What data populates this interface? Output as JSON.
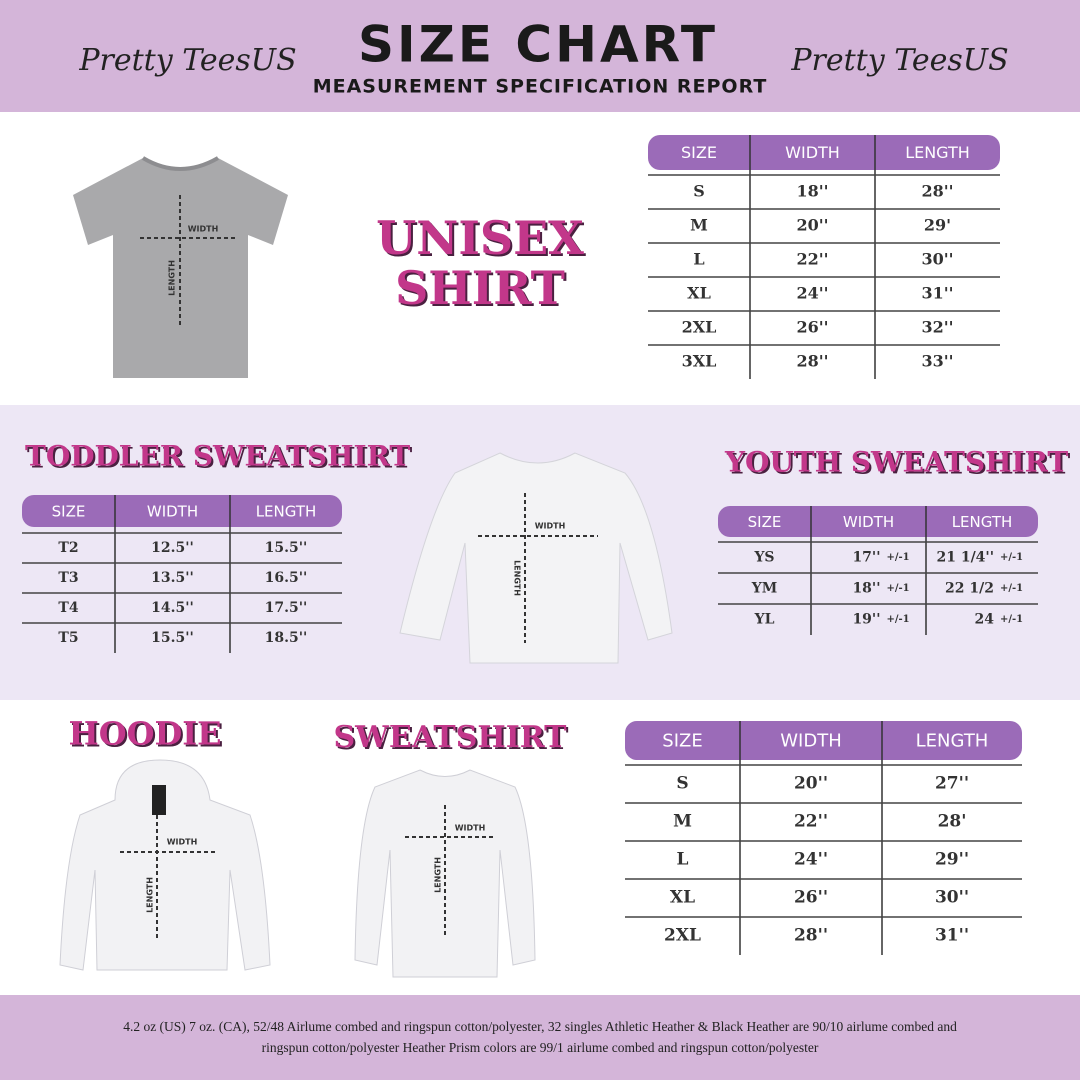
{
  "header": {
    "brand_left": "Pretty TeesUS",
    "brand_right": "Pretty TeesUS",
    "title": "SIZE CHART",
    "subtitle": "MEASUREMENT SPECIFICATION REPORT"
  },
  "garment_labels": {
    "width": "WIDTH",
    "length": "LENGTH"
  },
  "unisex": {
    "title_lines": [
      "UNISEX",
      "SHIRT"
    ],
    "table": {
      "columns": [
        "SIZE",
        "WIDTH",
        "LENGTH"
      ],
      "rows": [
        [
          "S",
          "18''",
          "28''"
        ],
        [
          "M",
          "20''",
          "29'"
        ],
        [
          "L",
          "22''",
          "30''"
        ],
        [
          "XL",
          "24''",
          "31''"
        ],
        [
          "2XL",
          "26''",
          "32''"
        ],
        [
          "3XL",
          "28''",
          "33''"
        ]
      ]
    }
  },
  "toddler": {
    "title": "TODDLER SWEATSHIRT",
    "table": {
      "columns": [
        "SIZE",
        "WIDTH",
        "LENGTH"
      ],
      "rows": [
        [
          "T2",
          "12.5''",
          "15.5''"
        ],
        [
          "T3",
          "13.5''",
          "16.5''"
        ],
        [
          "T4",
          "14.5''",
          "17.5''"
        ],
        [
          "T5",
          "15.5''",
          "18.5''"
        ]
      ]
    }
  },
  "youth": {
    "title": "YOUTH SWEATSHIRT",
    "table": {
      "columns": [
        "SIZE",
        "WIDTH",
        "LENGTH"
      ],
      "rows": [
        [
          "YS",
          "17''",
          "+/-1",
          "21 1/4''",
          "+/-1"
        ],
        [
          "YM",
          "18''",
          "+/-1",
          "22 1/2",
          "+/-1"
        ],
        [
          "YL",
          "19''",
          "+/-1",
          "24",
          "+/-1"
        ]
      ]
    }
  },
  "hoodie": {
    "title": "HOODIE"
  },
  "sweatshirt": {
    "title": "SWEATSHIRT",
    "table": {
      "columns": [
        "SIZE",
        "WIDTH",
        "LENGTH"
      ],
      "rows": [
        [
          "S",
          "20''",
          "27''"
        ],
        [
          "M",
          "22''",
          "28'"
        ],
        [
          "L",
          "24''",
          "29''"
        ],
        [
          "XL",
          "26''",
          "30''"
        ],
        [
          "2XL",
          "28''",
          "31''"
        ]
      ]
    }
  },
  "footer": {
    "lines": [
      "4.2 oz (US) 7 oz. (CA), 52/48 Airlume combed and ringspun cotton/polyester, 32 singles Athletic Heather & Black Heather are 90/10 airlume combed and",
      "ringspun cotton/polyester Heather Prism colors are 99/1 airlume combed and ringspun cotton/polyester"
    ]
  }
}
